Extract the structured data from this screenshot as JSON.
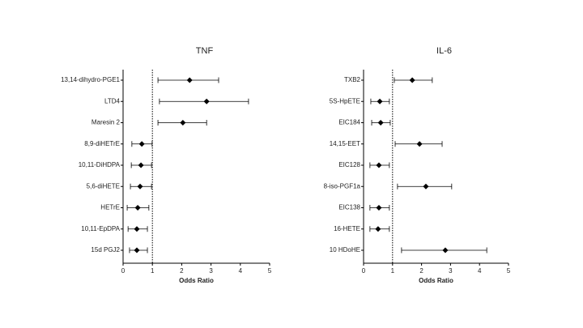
{
  "chart_data": [
    {
      "type": "forest",
      "title": "TNF",
      "xlabel": "Odds Ratio",
      "categories": [
        "13,14-dihydro-PGE1",
        "LTD4",
        "Maresin 2",
        "8,9-diHETrE",
        "10,11-DiHDPA",
        "5,6-diHETE",
        "HETrE",
        "10,11-EpDPA",
        "15d PGJ2"
      ],
      "values": [
        2.27,
        2.85,
        2.04,
        0.64,
        0.61,
        0.58,
        0.5,
        0.47,
        0.47
      ],
      "lower": [
        1.19,
        1.24,
        1.19,
        0.3,
        0.28,
        0.25,
        0.14,
        0.17,
        0.22
      ],
      "upper": [
        3.26,
        4.28,
        2.85,
        0.99,
        0.97,
        0.97,
        0.88,
        0.83,
        0.83
      ],
      "xlim": [
        0,
        5
      ],
      "xticks": [
        0,
        1,
        2,
        3,
        4,
        5
      ],
      "reference": 1,
      "color": "#000000"
    },
    {
      "type": "forest",
      "title": "IL-6",
      "xlabel": "Odds Ratio",
      "categories": [
        "TXB2",
        "5S-HpETE",
        "EIC184",
        "14,15-EET",
        "EIC128",
        "8-iso-PGF1a",
        "EIC138",
        "16-HETE",
        "10 HDoHE"
      ],
      "values": [
        1.68,
        0.56,
        0.59,
        1.93,
        0.53,
        2.15,
        0.53,
        0.5,
        2.82
      ],
      "lower": [
        1.06,
        0.25,
        0.28,
        1.09,
        0.22,
        1.17,
        0.22,
        0.22,
        1.31
      ],
      "upper": [
        2.37,
        0.89,
        0.92,
        2.71,
        0.89,
        3.04,
        0.89,
        0.89,
        4.25
      ],
      "xlim": [
        0,
        5
      ],
      "xticks": [
        0,
        1,
        2,
        3,
        4,
        5
      ],
      "reference": 1,
      "color": "#000000"
    }
  ]
}
